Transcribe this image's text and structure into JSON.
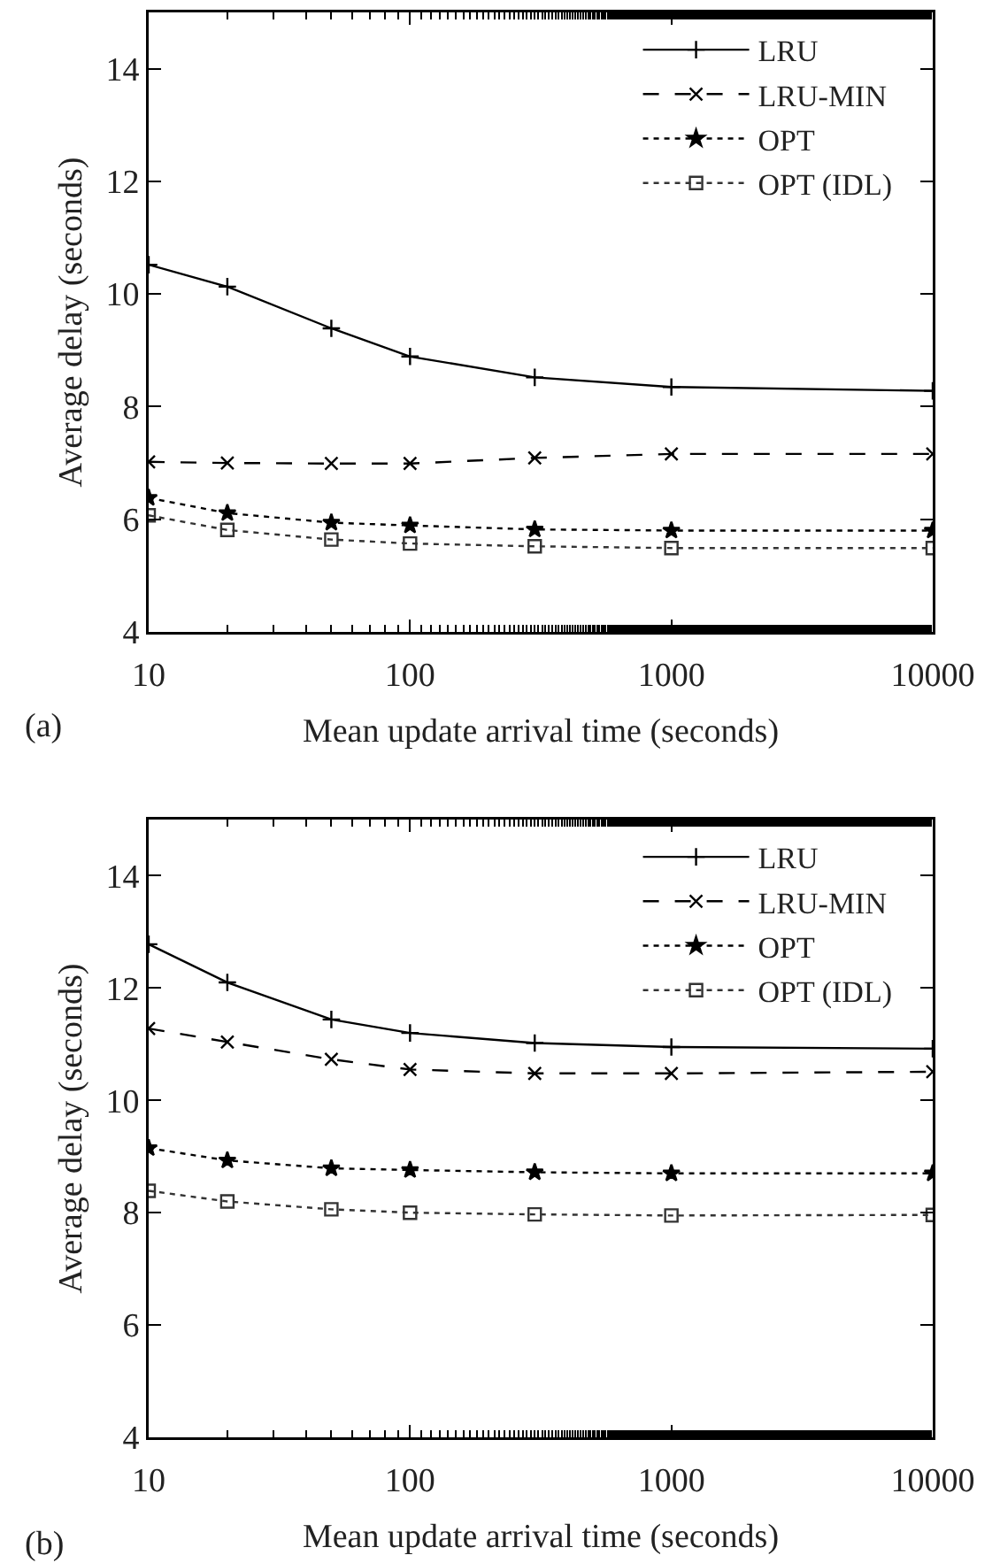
{
  "chart_data": [
    {
      "type": "line",
      "xlabel": "Mean update arrival time (seconds)",
      "ylabel": "Average delay (seconds)",
      "annotations": [
        "(a)"
      ],
      "log": "x",
      "grid": false,
      "legend": "top right",
      "x": [
        10,
        20,
        50,
        100,
        300,
        1000,
        10000
      ],
      "xlim": [
        10,
        10000
      ],
      "xticks": [
        10,
        100,
        1000,
        10000
      ],
      "ylim": [
        4,
        15
      ],
      "yticks": [
        4,
        6,
        8,
        10,
        12,
        14
      ],
      "series": [
        {
          "name": "LRU",
          "color": "#000000",
          "marker": "cross",
          "line_style": "solid",
          "values": [
            10.52,
            10.13,
            9.39,
            8.89,
            8.52,
            8.35,
            8.28
          ]
        },
        {
          "name": "LRU-MIN",
          "color": "#000000",
          "marker": "x",
          "line_style": "dashed",
          "values": [
            7.02,
            7.0,
            6.99,
            6.99,
            7.09,
            7.16,
            7.16
          ]
        },
        {
          "name": "OPT",
          "color": "#000000",
          "marker": "star",
          "line_style": "dotted",
          "values": [
            6.38,
            6.11,
            5.94,
            5.89,
            5.82,
            5.8,
            5.8
          ]
        },
        {
          "name": "OPT (IDL)",
          "color": "#333333",
          "marker": "square",
          "line_style": "dotted",
          "values": [
            6.07,
            5.81,
            5.64,
            5.57,
            5.52,
            5.49,
            5.49
          ]
        }
      ]
    },
    {
      "type": "line",
      "xlabel": "Mean update arrival time (seconds)",
      "ylabel": "Average delay (seconds)",
      "annotations": [
        "(b)"
      ],
      "log": "x",
      "grid": false,
      "legend": "top right",
      "x": [
        10,
        20,
        50,
        100,
        300,
        1000,
        10000
      ],
      "xlim": [
        10,
        10000
      ],
      "xticks": [
        10,
        100,
        1000,
        10000
      ],
      "ylim": [
        4,
        15
      ],
      "yticks": [
        4,
        6,
        8,
        10,
        12,
        14
      ],
      "series": [
        {
          "name": "LRU",
          "color": "#000000",
          "marker": "cross",
          "line_style": "solid",
          "values": [
            12.78,
            12.1,
            11.44,
            11.2,
            11.02,
            10.95,
            10.92
          ]
        },
        {
          "name": "LRU-MIN",
          "color": "#000000",
          "marker": "x",
          "line_style": "dashed",
          "values": [
            11.28,
            11.04,
            10.73,
            10.55,
            10.48,
            10.48,
            10.51
          ]
        },
        {
          "name": "OPT",
          "color": "#000000",
          "marker": "star",
          "line_style": "dotted",
          "values": [
            9.15,
            8.93,
            8.79,
            8.76,
            8.72,
            8.7,
            8.7
          ]
        },
        {
          "name": "OPT (IDL)",
          "color": "#333333",
          "marker": "square",
          "line_style": "dotted",
          "values": [
            8.39,
            8.2,
            8.06,
            8.0,
            7.97,
            7.95,
            7.96
          ]
        }
      ]
    }
  ]
}
